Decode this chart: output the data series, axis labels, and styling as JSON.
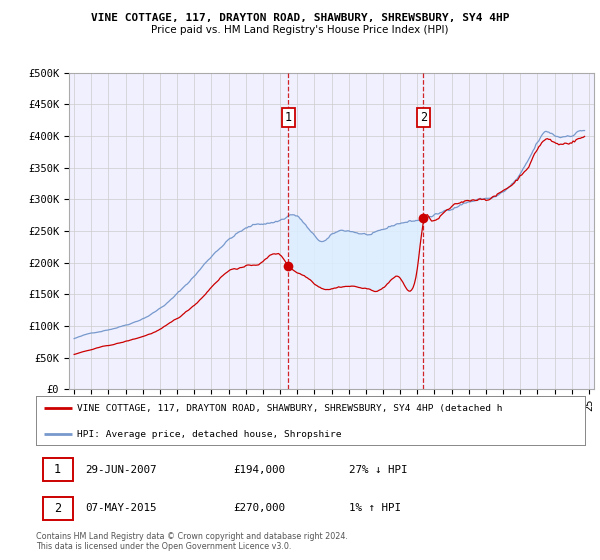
{
  "title": "VINE COTTAGE, 117, DRAYTON ROAD, SHAWBURY, SHREWSBURY, SY4 4HP",
  "subtitle": "Price paid vs. HM Land Registry's House Price Index (HPI)",
  "ylim": [
    0,
    500000
  ],
  "yticks": [
    0,
    50000,
    100000,
    150000,
    200000,
    250000,
    300000,
    350000,
    400000,
    450000,
    500000
  ],
  "ytick_labels": [
    "£0",
    "£50K",
    "£100K",
    "£150K",
    "£200K",
    "£250K",
    "£300K",
    "£350K",
    "£400K",
    "£450K",
    "£500K"
  ],
  "xlim_start": 1994.7,
  "xlim_end": 2025.3,
  "xtick_years": [
    1995,
    1996,
    1997,
    1998,
    1999,
    2000,
    2001,
    2002,
    2003,
    2004,
    2005,
    2006,
    2007,
    2008,
    2009,
    2010,
    2011,
    2012,
    2013,
    2014,
    2015,
    2016,
    2017,
    2018,
    2019,
    2020,
    2021,
    2022,
    2023,
    2024,
    2025
  ],
  "purchase1_x": 2007.49,
  "purchase1_y": 194000,
  "purchase1_label": "1",
  "purchase1_date": "29-JUN-2007",
  "purchase1_price": "£194,000",
  "purchase1_hpi": "27% ↓ HPI",
  "purchase2_x": 2015.35,
  "purchase2_y": 270000,
  "purchase2_label": "2",
  "purchase2_date": "07-MAY-2015",
  "purchase2_price": "£270,000",
  "purchase2_hpi": "1% ↑ HPI",
  "line_color_property": "#cc0000",
  "line_color_hpi": "#7799cc",
  "fill_color": "#ddeeff",
  "vline_color": "#cc0000",
  "bg_color": "#f0f0ff",
  "legend_label_property": "VINE COTTAGE, 117, DRAYTON ROAD, SHAWBURY, SHREWSBURY, SY4 4HP (detached h",
  "legend_label_hpi": "HPI: Average price, detached house, Shropshire",
  "footer": "Contains HM Land Registry data © Crown copyright and database right 2024.\nThis data is licensed under the Open Government Licence v3.0."
}
